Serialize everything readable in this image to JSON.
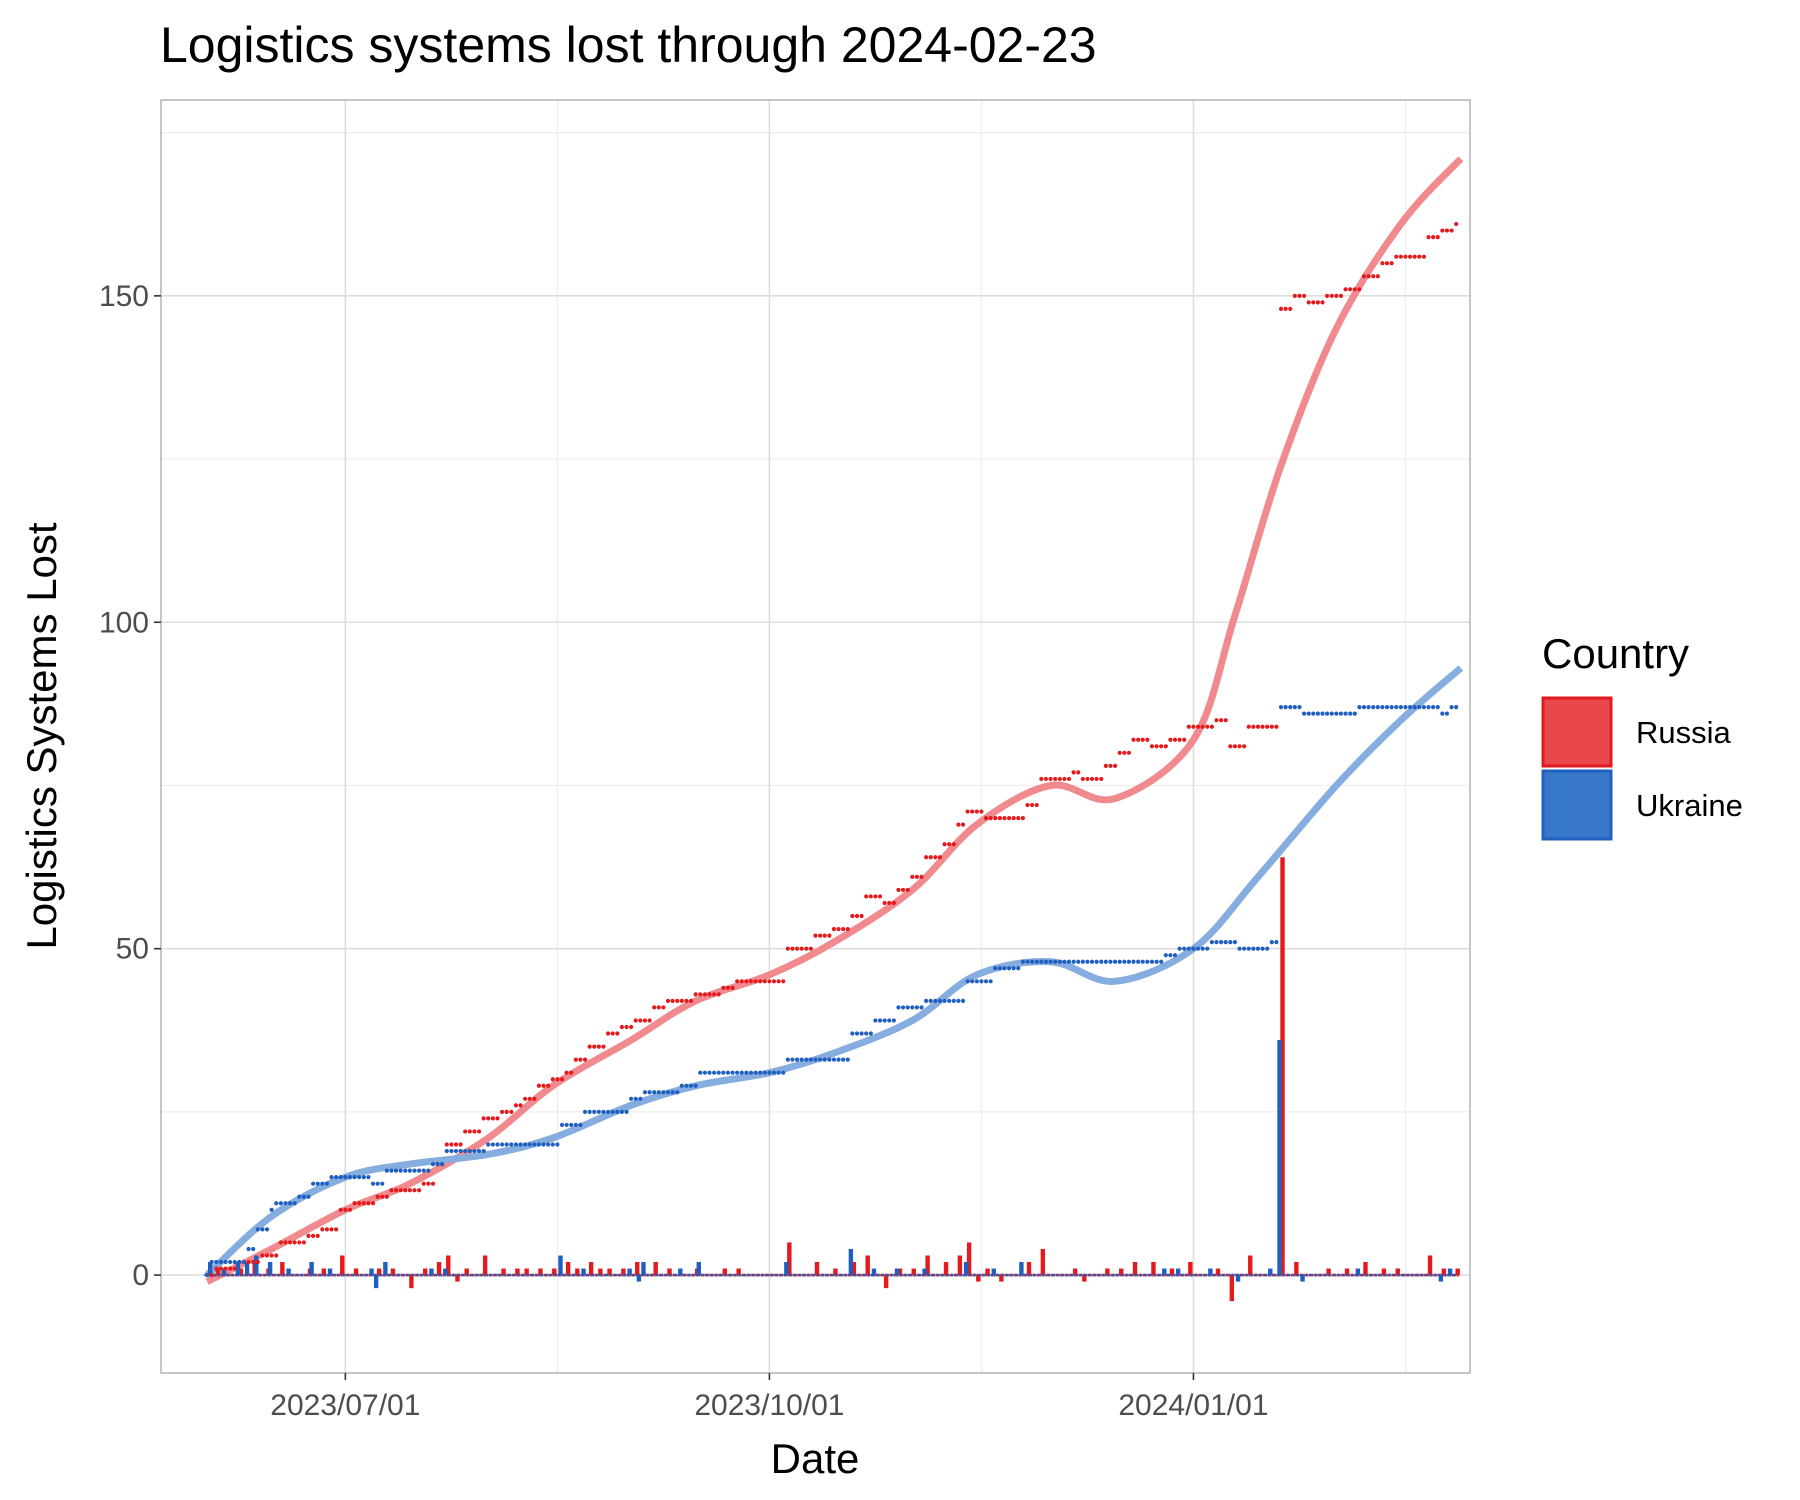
{
  "chart_data": {
    "type": "line",
    "title": "Logistics systems lost through 2024-02-23",
    "xlabel": "Date",
    "ylabel": "Logistics Systems Lost",
    "x_type": "date",
    "xlim": [
      "2023-05-22",
      "2024-03-01"
    ],
    "ylim": [
      -15,
      180
    ],
    "x_ticks": [
      "2023-07-01",
      "2023-10-01",
      "2024-01-01"
    ],
    "x_tick_labels": [
      "2023/07/01",
      "2023/10/01",
      "2024/01/01"
    ],
    "y_ticks": [
      0,
      50,
      100,
      150
    ],
    "y_tick_labels": [
      "0",
      "50",
      "100",
      "150"
    ],
    "grid": true,
    "legend": {
      "title": "Country",
      "position": "right",
      "entries": [
        {
          "label": "Russia",
          "color": "#e41a1c"
        },
        {
          "label": "Ukraine",
          "color": "#1f5fbf"
        }
      ]
    },
    "series": [
      {
        "name": "Russia",
        "color": "#e41a1c",
        "smooth_color": "#f08a8e",
        "cumulative_steps": [
          [
            "2023-06-01",
            0
          ],
          [
            "2023-06-03",
            1
          ],
          [
            "2023-06-08",
            2
          ],
          [
            "2023-06-13",
            3
          ],
          [
            "2023-06-17",
            5
          ],
          [
            "2023-06-23",
            6
          ],
          [
            "2023-06-26",
            7
          ],
          [
            "2023-06-30",
            10
          ],
          [
            "2023-07-03",
            11
          ],
          [
            "2023-07-08",
            12
          ],
          [
            "2023-07-11",
            13
          ],
          [
            "2023-07-15",
            13
          ],
          [
            "2023-07-18",
            14
          ],
          [
            "2023-07-21",
            17
          ],
          [
            "2023-07-23",
            20
          ],
          [
            "2023-07-27",
            22
          ],
          [
            "2023-07-31",
            24
          ],
          [
            "2023-08-04",
            25
          ],
          [
            "2023-08-07",
            26
          ],
          [
            "2023-08-09",
            27
          ],
          [
            "2023-08-12",
            29
          ],
          [
            "2023-08-15",
            30
          ],
          [
            "2023-08-18",
            31
          ],
          [
            "2023-08-20",
            33
          ],
          [
            "2023-08-23",
            35
          ],
          [
            "2023-08-27",
            37
          ],
          [
            "2023-08-30",
            38
          ],
          [
            "2023-09-02",
            39
          ],
          [
            "2023-09-06",
            41
          ],
          [
            "2023-09-09",
            42
          ],
          [
            "2023-09-15",
            43
          ],
          [
            "2023-09-21",
            44
          ],
          [
            "2023-09-24",
            45
          ],
          [
            "2023-10-05",
            50
          ],
          [
            "2023-10-11",
            52
          ],
          [
            "2023-10-15",
            53
          ],
          [
            "2023-10-19",
            55
          ],
          [
            "2023-10-22",
            58
          ],
          [
            "2023-10-26",
            57
          ],
          [
            "2023-10-29",
            59
          ],
          [
            "2023-11-01",
            61
          ],
          [
            "2023-11-04",
            64
          ],
          [
            "2023-11-08",
            66
          ],
          [
            "2023-11-11",
            69
          ],
          [
            "2023-11-13",
            71
          ],
          [
            "2023-11-17",
            70
          ],
          [
            "2023-11-26",
            72
          ],
          [
            "2023-11-29",
            76
          ],
          [
            "2023-12-06",
            77
          ],
          [
            "2023-12-08",
            76
          ],
          [
            "2023-12-13",
            78
          ],
          [
            "2023-12-16",
            80
          ],
          [
            "2023-12-19",
            82
          ],
          [
            "2023-12-23",
            81
          ],
          [
            "2023-12-27",
            82
          ],
          [
            "2023-12-31",
            84
          ],
          [
            "2024-01-06",
            85
          ],
          [
            "2024-01-09",
            81
          ],
          [
            "2024-01-13",
            84
          ],
          [
            "2024-01-20",
            148
          ],
          [
            "2024-01-23",
            150
          ],
          [
            "2024-01-26",
            149
          ],
          [
            "2024-01-30",
            150
          ],
          [
            "2024-02-03",
            151
          ],
          [
            "2024-02-07",
            153
          ],
          [
            "2024-02-11",
            155
          ],
          [
            "2024-02-14",
            156
          ],
          [
            "2024-02-21",
            159
          ],
          [
            "2024-02-24",
            160
          ],
          [
            "2024-02-27",
            161
          ]
        ],
        "daily_changes": [
          [
            "2023-06-03",
            1
          ],
          [
            "2023-06-08",
            1
          ],
          [
            "2023-06-11",
            2
          ],
          [
            "2023-06-14",
            1
          ],
          [
            "2023-06-17",
            2
          ],
          [
            "2023-06-23",
            1
          ],
          [
            "2023-06-26",
            1
          ],
          [
            "2023-06-30",
            3
          ],
          [
            "2023-07-03",
            1
          ],
          [
            "2023-07-08",
            1
          ],
          [
            "2023-07-11",
            1
          ],
          [
            "2023-07-15",
            -2
          ],
          [
            "2023-07-18",
            1
          ],
          [
            "2023-07-21",
            2
          ],
          [
            "2023-07-23",
            3
          ],
          [
            "2023-07-25",
            -1
          ],
          [
            "2023-07-27",
            1
          ],
          [
            "2023-07-31",
            3
          ],
          [
            "2023-08-04",
            1
          ],
          [
            "2023-08-07",
            1
          ],
          [
            "2023-08-09",
            1
          ],
          [
            "2023-08-12",
            1
          ],
          [
            "2023-08-15",
            1
          ],
          [
            "2023-08-18",
            2
          ],
          [
            "2023-08-20",
            1
          ],
          [
            "2023-08-23",
            2
          ],
          [
            "2023-08-25",
            1
          ],
          [
            "2023-08-27",
            1
          ],
          [
            "2023-08-30",
            1
          ],
          [
            "2023-09-02",
            2
          ],
          [
            "2023-09-06",
            2
          ],
          [
            "2023-09-09",
            1
          ],
          [
            "2023-09-15",
            1
          ],
          [
            "2023-09-21",
            1
          ],
          [
            "2023-09-24",
            1
          ],
          [
            "2023-10-05",
            5
          ],
          [
            "2023-10-11",
            2
          ],
          [
            "2023-10-15",
            1
          ],
          [
            "2023-10-19",
            2
          ],
          [
            "2023-10-22",
            3
          ],
          [
            "2023-10-26",
            -2
          ],
          [
            "2023-10-29",
            1
          ],
          [
            "2023-11-01",
            1
          ],
          [
            "2023-11-04",
            3
          ],
          [
            "2023-11-08",
            2
          ],
          [
            "2023-11-11",
            3
          ],
          [
            "2023-11-13",
            5
          ],
          [
            "2023-11-15",
            -1
          ],
          [
            "2023-11-17",
            1
          ],
          [
            "2023-11-20",
            -1
          ],
          [
            "2023-11-26",
            2
          ],
          [
            "2023-11-29",
            4
          ],
          [
            "2023-12-06",
            1
          ],
          [
            "2023-12-08",
            -1
          ],
          [
            "2023-12-13",
            1
          ],
          [
            "2023-12-16",
            1
          ],
          [
            "2023-12-19",
            2
          ],
          [
            "2023-12-23",
            2
          ],
          [
            "2023-12-27",
            1
          ],
          [
            "2023-12-31",
            2
          ],
          [
            "2024-01-06",
            1
          ],
          [
            "2024-01-09",
            -4
          ],
          [
            "2024-01-13",
            3
          ],
          [
            "2024-01-20",
            64
          ],
          [
            "2024-01-23",
            2
          ],
          [
            "2024-01-30",
            1
          ],
          [
            "2024-02-03",
            1
          ],
          [
            "2024-02-07",
            2
          ],
          [
            "2024-02-11",
            1
          ],
          [
            "2024-02-14",
            1
          ],
          [
            "2024-02-21",
            3
          ],
          [
            "2024-02-24",
            1
          ],
          [
            "2024-02-27",
            1
          ]
        ],
        "smooth_curve": [
          [
            "2023-06-01",
            -1
          ],
          [
            "2023-06-15",
            4
          ],
          [
            "2023-07-01",
            10
          ],
          [
            "2023-07-15",
            14
          ],
          [
            "2023-08-01",
            21
          ],
          [
            "2023-08-15",
            29
          ],
          [
            "2023-09-01",
            36
          ],
          [
            "2023-09-15",
            42
          ],
          [
            "2023-10-01",
            46
          ],
          [
            "2023-10-15",
            51
          ],
          [
            "2023-11-01",
            59
          ],
          [
            "2023-11-15",
            69
          ],
          [
            "2023-12-01",
            75
          ],
          [
            "2023-12-15",
            73
          ],
          [
            "2024-01-01",
            82
          ],
          [
            "2024-01-10",
            101
          ],
          [
            "2024-01-20",
            124
          ],
          [
            "2024-02-01",
            145
          ],
          [
            "2024-02-15",
            161
          ],
          [
            "2024-02-28",
            171
          ]
        ]
      },
      {
        "name": "Ukraine",
        "color": "#1f5fbf",
        "smooth_color": "#86ade0",
        "cumulative_steps": [
          [
            "2023-06-01",
            0
          ],
          [
            "2023-06-02",
            2
          ],
          [
            "2023-06-10",
            4
          ],
          [
            "2023-06-12",
            7
          ],
          [
            "2023-06-15",
            10
          ],
          [
            "2023-06-16",
            11
          ],
          [
            "2023-06-21",
            12
          ],
          [
            "2023-06-24",
            14
          ],
          [
            "2023-06-28",
            15
          ],
          [
            "2023-07-07",
            14
          ],
          [
            "2023-07-10",
            16
          ],
          [
            "2023-07-20",
            17
          ],
          [
            "2023-07-23",
            19
          ],
          [
            "2023-08-01",
            20
          ],
          [
            "2023-08-17",
            23
          ],
          [
            "2023-08-22",
            25
          ],
          [
            "2023-09-01",
            27
          ],
          [
            "2023-09-04",
            28
          ],
          [
            "2023-09-12",
            29
          ],
          [
            "2023-09-16",
            31
          ],
          [
            "2023-10-05",
            33
          ],
          [
            "2023-10-19",
            37
          ],
          [
            "2023-10-24",
            39
          ],
          [
            "2023-10-29",
            41
          ],
          [
            "2023-11-04",
            42
          ],
          [
            "2023-11-13",
            45
          ],
          [
            "2023-11-19",
            47
          ],
          [
            "2023-11-25",
            48
          ],
          [
            "2023-12-26",
            49
          ],
          [
            "2023-12-29",
            50
          ],
          [
            "2024-01-05",
            51
          ],
          [
            "2024-01-11",
            50
          ],
          [
            "2024-01-18",
            51
          ],
          [
            "2024-01-20",
            87
          ],
          [
            "2024-01-25",
            86
          ],
          [
            "2024-02-06",
            87
          ],
          [
            "2024-02-24",
            86
          ],
          [
            "2024-02-26",
            87
          ]
        ],
        "daily_changes": [
          [
            "2023-06-02",
            2
          ],
          [
            "2023-06-05",
            1
          ],
          [
            "2023-06-08",
            2
          ],
          [
            "2023-06-10",
            2
          ],
          [
            "2023-06-12",
            3
          ],
          [
            "2023-06-15",
            2
          ],
          [
            "2023-06-19",
            1
          ],
          [
            "2023-06-24",
            2
          ],
          [
            "2023-06-28",
            1
          ],
          [
            "2023-07-07",
            1
          ],
          [
            "2023-07-08",
            -2
          ],
          [
            "2023-07-10",
            2
          ],
          [
            "2023-07-20",
            1
          ],
          [
            "2023-07-23",
            1
          ],
          [
            "2023-08-17",
            3
          ],
          [
            "2023-08-22",
            1
          ],
          [
            "2023-09-01",
            1
          ],
          [
            "2023-09-03",
            -1
          ],
          [
            "2023-09-04",
            2
          ],
          [
            "2023-09-12",
            1
          ],
          [
            "2023-09-16",
            2
          ],
          [
            "2023-10-05",
            2
          ],
          [
            "2023-10-19",
            4
          ],
          [
            "2023-10-24",
            1
          ],
          [
            "2023-10-29",
            1
          ],
          [
            "2023-11-04",
            1
          ],
          [
            "2023-11-13",
            2
          ],
          [
            "2023-11-19",
            1
          ],
          [
            "2023-11-25",
            2
          ],
          [
            "2023-12-26",
            1
          ],
          [
            "2023-12-29",
            1
          ],
          [
            "2024-01-05",
            1
          ],
          [
            "2024-01-11",
            -1
          ],
          [
            "2024-01-18",
            1
          ],
          [
            "2024-01-20",
            36
          ],
          [
            "2024-01-25",
            -1
          ],
          [
            "2024-02-06",
            1
          ],
          [
            "2024-02-24",
            -1
          ],
          [
            "2024-02-26",
            1
          ]
        ],
        "smooth_curve": [
          [
            "2023-06-01",
            0
          ],
          [
            "2023-06-15",
            9
          ],
          [
            "2023-07-01",
            15
          ],
          [
            "2023-07-15",
            17
          ],
          [
            "2023-08-01",
            18.5
          ],
          [
            "2023-08-15",
            21
          ],
          [
            "2023-09-01",
            26
          ],
          [
            "2023-09-15",
            29
          ],
          [
            "2023-10-01",
            31
          ],
          [
            "2023-10-15",
            34
          ],
          [
            "2023-11-01",
            39
          ],
          [
            "2023-11-15",
            46
          ],
          [
            "2023-12-01",
            48
          ],
          [
            "2023-12-15",
            45
          ],
          [
            "2024-01-01",
            50
          ],
          [
            "2024-01-15",
            61
          ],
          [
            "2024-02-01",
            75
          ],
          [
            "2024-02-15",
            85
          ],
          [
            "2024-02-28",
            93
          ]
        ]
      }
    ]
  }
}
